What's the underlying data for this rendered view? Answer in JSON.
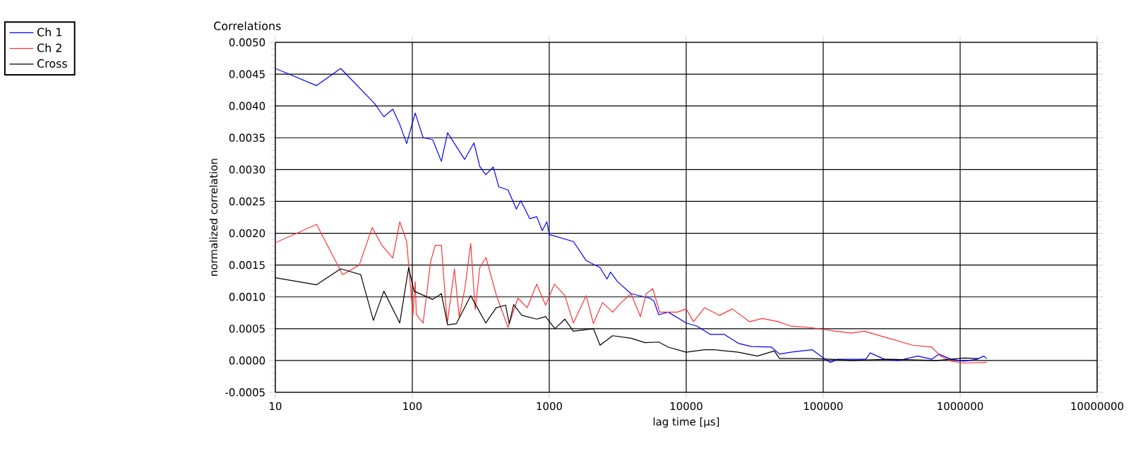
{
  "chart_data": {
    "type": "line",
    "title": "Correlations",
    "xlabel": "lag time [µs]",
    "ylabel": "normalized correlation",
    "log": "x",
    "grid": true,
    "legend": "top left",
    "marker": "none",
    "line_style": "solid",
    "xlim": [
      10,
      10000000
    ],
    "xticks": [
      10,
      100,
      1000,
      10000,
      100000,
      1000000,
      10000000
    ],
    "ylim": [
      -0.0005,
      0.005
    ],
    "yticks": [
      {
        "value": -0.0005,
        "label": "-0.0005"
      },
      {
        "value": 0,
        "label": "0.0000"
      },
      {
        "value": 0.0005,
        "label": "0.0005"
      },
      {
        "value": 0.001,
        "label": "0.0010"
      },
      {
        "value": 0.0015,
        "label": "0.0015"
      },
      {
        "value": 0.002,
        "label": "0.0020"
      },
      {
        "value": 0.0025,
        "label": "0.0025"
      },
      {
        "value": 0.003,
        "label": "0.0030"
      },
      {
        "value": 0.0035,
        "label": "0.0035"
      },
      {
        "value": 0.004,
        "label": "0.0040"
      },
      {
        "value": 0.0045,
        "label": "0.0045"
      },
      {
        "value": 0.005,
        "label": "0.0050"
      }
    ],
    "series": [
      {
        "name": "Ch 1",
        "color": "#0000ff",
        "x": [
          10,
          20,
          30,
          53,
          62,
          72,
          81,
          91,
          105,
          120,
          141,
          163,
          181,
          241,
          282,
          311,
          344,
          390,
          428,
          500,
          575,
          620,
          720,
          810,
          890,
          960,
          1000,
          1500,
          1860,
          2350,
          2640,
          2800,
          3150,
          3960,
          5400,
          5800,
          6300,
          7400,
          10000,
          12000,
          15000,
          19000,
          24000,
          30000,
          42000,
          48000,
          58000,
          83000,
          100000,
          113000,
          127000,
          205000,
          220000,
          280000,
          355000,
          490000,
          620000,
          700000,
          860000,
          1070000,
          1330000,
          1490000,
          1560000
        ],
        "values": [
          0.00459,
          0.00432,
          0.00459,
          0.00404,
          0.00383,
          0.00395,
          0.00371,
          0.00341,
          0.00389,
          0.0035,
          0.00347,
          0.00313,
          0.00358,
          0.00316,
          0.00342,
          0.00305,
          0.00292,
          0.00304,
          0.00273,
          0.00268,
          0.00238,
          0.00251,
          0.00223,
          0.00226,
          0.00204,
          0.00218,
          0.00198,
          0.00187,
          0.00157,
          0.00146,
          0.00128,
          0.00139,
          0.00124,
          0.00105,
          0.00098,
          0.00094,
          0.00072,
          0.00076,
          0.00059,
          0.00054,
          0.00041,
          0.00041,
          0.00027,
          0.00022,
          0.00021,
          0.0001,
          0.00013,
          0.00017,
          4e-05,
          -3e-05,
          2e-05,
          2e-05,
          0.00012,
          2e-05,
          0,
          7e-05,
          2e-05,
          0.0001,
          2e-05,
          -1e-05,
          2e-05,
          7e-05,
          3e-05
        ]
      },
      {
        "name": "Ch 2",
        "color": "#ff3333",
        "x": [
          10,
          20,
          31,
          41,
          51,
          60,
          72,
          81,
          91,
          101,
          105,
          107,
          120,
          136,
          147,
          163,
          180,
          203,
          220,
          242,
          267,
          288,
          311,
          345,
          410,
          500,
          590,
          690,
          810,
          940,
          1090,
          1300,
          1500,
          1860,
          2100,
          2450,
          2900,
          3350,
          3960,
          4630,
          5100,
          5700,
          6400,
          8600,
          10000,
          11300,
          13600,
          17500,
          21700,
          29000,
          36000,
          47000,
          58000,
          79000,
          100000,
          123000,
          160000,
          200000,
          300000,
          450000,
          620000,
          720000,
          860000,
          1070000,
          1560000
        ],
        "values": [
          0.00185,
          0.00214,
          0.00135,
          0.0015,
          0.00209,
          0.00181,
          0.00161,
          0.00218,
          0.00187,
          0.00071,
          0.00124,
          0.00072,
          0.00059,
          0.00155,
          0.00181,
          0.00181,
          0.00058,
          0.00144,
          0.00069,
          0.00113,
          0.00184,
          0.0008,
          0.00146,
          0.00162,
          0.00103,
          0.00052,
          0.00098,
          0.00083,
          0.0012,
          0.00087,
          0.0012,
          0.00102,
          0.00059,
          0.00102,
          0.00058,
          0.00091,
          0.00076,
          0.00091,
          0.00105,
          0.00069,
          0.00105,
          0.00113,
          0.00076,
          0.00076,
          0.00081,
          0.00061,
          0.00083,
          0.00071,
          0.00081,
          0.00061,
          0.00066,
          0.00061,
          0.00054,
          0.00052,
          0.00049,
          0.00046,
          0.00043,
          0.00046,
          0.00035,
          0.00024,
          0.00021,
          7e-05,
          -1e-05,
          -4e-05,
          -3e-05
        ]
      },
      {
        "name": "Cross",
        "color": "#000000",
        "x": [
          10,
          20,
          30,
          42,
          52,
          62,
          81,
          94,
          103,
          141,
          163,
          181,
          210,
          267,
          293,
          344,
          410,
          480,
          510,
          550,
          630,
          810,
          940,
          1100,
          1300,
          1500,
          2100,
          2350,
          2900,
          3960,
          5000,
          6300,
          7400,
          10000,
          13600,
          16000,
          24000,
          33000,
          44000,
          48000,
          79000,
          115000,
          160000,
          300000,
          670000,
          1070000,
          1360000
        ],
        "values": [
          0.0013,
          0.00119,
          0.00144,
          0.00135,
          0.00063,
          0.00109,
          0.00059,
          0.00146,
          0.00109,
          0.00096,
          0.00105,
          0.00056,
          0.00058,
          0.00102,
          0.00086,
          0.00059,
          0.00083,
          0.00087,
          0.00058,
          0.00088,
          0.00071,
          0.00065,
          0.00069,
          0.0005,
          0.00065,
          0.00046,
          0.0005,
          0.00024,
          0.00039,
          0.00035,
          0.00028,
          0.00029,
          0.00021,
          0.00013,
          0.00017,
          0.00017,
          0.00013,
          7e-05,
          0.00015,
          3e-05,
          3e-05,
          2e-05,
          0,
          2e-05,
          0,
          4e-05,
          3e-05
        ]
      }
    ]
  }
}
